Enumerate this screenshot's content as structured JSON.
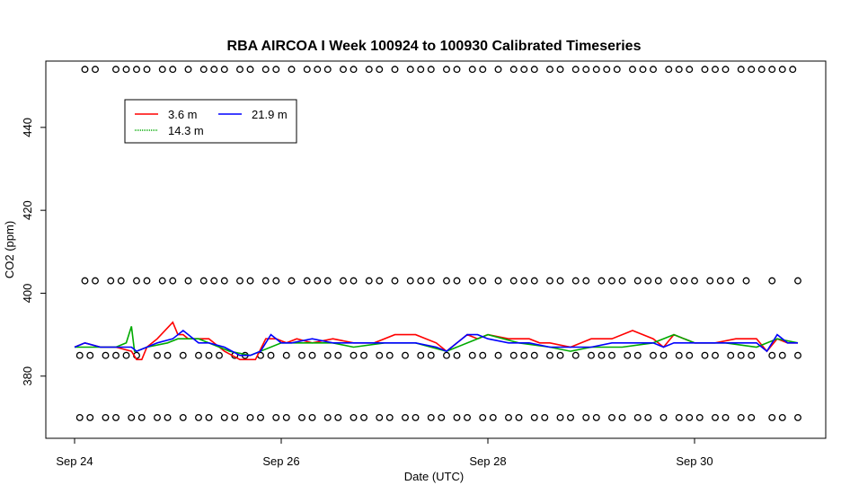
{
  "chart_data": {
    "type": "line",
    "title": "RBA AIRCOA I  Week 100924 to 100930  Calibrated Timeseries",
    "xlabel": "Date (UTC)",
    "ylabel": "CO2 (ppm)",
    "xlim": [
      "2010-09-24T00:00",
      "2010-09-31T06:00"
    ],
    "ylim": [
      365,
      456
    ],
    "x_ticks": [
      {
        "x": "2010-09-24T00:00",
        "label": "Sep 24"
      },
      {
        "x": "2010-09-26T00:00",
        "label": "Sep 26"
      },
      {
        "x": "2010-09-28T00:00",
        "label": "Sep 28"
      },
      {
        "x": "2010-09-30T00:00",
        "label": "Sep 30"
      }
    ],
    "y_ticks": [
      380,
      400,
      420,
      440
    ],
    "grid": false,
    "legend": {
      "placement": "top-left",
      "entries": [
        {
          "name": "3.6 m",
          "color": "#ff0000"
        },
        {
          "name": "14.3 m",
          "color": "#00aa00"
        },
        {
          "name": "21.9 m",
          "color": "#0000ff"
        }
      ]
    },
    "series": [
      {
        "name": "3.6 m",
        "color": "#ff0000",
        "x_days": [
          0,
          0.1,
          0.25,
          0.4,
          0.55,
          0.6,
          0.65,
          0.7,
          0.8,
          0.95,
          1.0,
          1.05,
          1.1,
          1.2,
          1.3,
          1.45,
          1.6,
          1.7,
          1.75,
          1.85,
          1.95,
          2.05,
          2.15,
          2.3,
          2.5,
          2.7,
          2.9,
          3.1,
          3.3,
          3.5,
          3.6,
          3.8,
          3.9,
          4.0,
          4.2,
          4.4,
          4.5,
          4.6,
          4.8,
          5.0,
          5.2,
          5.4,
          5.6,
          5.7,
          5.8,
          5.9,
          6.0,
          6.2,
          6.4,
          6.6,
          6.7,
          6.8,
          6.9,
          7.0
        ],
        "values": [
          387,
          388,
          387,
          387,
          386,
          384,
          384,
          387,
          389,
          393,
          390,
          390,
          389,
          389,
          389,
          386,
          384,
          384,
          384,
          389,
          389,
          388,
          389,
          388,
          389,
          388,
          388,
          390,
          390,
          388,
          386,
          390,
          389,
          390,
          389,
          389,
          388,
          388,
          387,
          389,
          389,
          391,
          389,
          387,
          390,
          389,
          388,
          388,
          389,
          389,
          386,
          389,
          388,
          388
        ]
      },
      {
        "name": "14.3 m",
        "color": "#00aa00",
        "x_days": [
          0,
          0.2,
          0.4,
          0.5,
          0.55,
          0.58,
          0.6,
          0.7,
          0.9,
          1.0,
          1.2,
          1.5,
          1.7,
          2.0,
          2.3,
          2.5,
          2.7,
          3.0,
          3.3,
          3.6,
          4.0,
          4.3,
          4.6,
          4.8,
          5.0,
          5.3,
          5.6,
          5.8,
          6.0,
          6.3,
          6.6,
          6.8,
          7.0
        ],
        "values": [
          387,
          387,
          387,
          388,
          392,
          386,
          386,
          387,
          388,
          389,
          389,
          386,
          385,
          388,
          388,
          388,
          387,
          388,
          388,
          386,
          390,
          388,
          387,
          386,
          387,
          387,
          388,
          390,
          388,
          388,
          387,
          389,
          388
        ]
      },
      {
        "name": "21.9 m",
        "color": "#0000ff",
        "x_days": [
          0,
          0.1,
          0.25,
          0.4,
          0.55,
          0.6,
          0.7,
          0.8,
          0.95,
          1.05,
          1.2,
          1.3,
          1.45,
          1.6,
          1.7,
          1.8,
          1.9,
          2.0,
          2.1,
          2.3,
          2.5,
          2.7,
          2.9,
          3.1,
          3.3,
          3.5,
          3.6,
          3.8,
          3.9,
          4.0,
          4.2,
          4.4,
          4.6,
          4.8,
          5.0,
          5.2,
          5.4,
          5.6,
          5.7,
          5.8,
          6.0,
          6.2,
          6.4,
          6.6,
          6.7,
          6.8,
          6.9,
          7.0
        ],
        "values": [
          387,
          388,
          387,
          387,
          387,
          386,
          387,
          388,
          389,
          391,
          388,
          388,
          387,
          385,
          385,
          386,
          390,
          388,
          388,
          389,
          388,
          388,
          388,
          388,
          388,
          387,
          386,
          390,
          390,
          389,
          388,
          388,
          387,
          387,
          387,
          388,
          388,
          388,
          387,
          388,
          388,
          388,
          388,
          388,
          386,
          390,
          388,
          388
        ]
      },
      {
        "name": "",
        "type": "scatter",
        "marker": "open-circle",
        "y_level": 454,
        "x_days": [
          0.1,
          0.2,
          0.4,
          0.5,
          0.6,
          0.7,
          0.85,
          0.95,
          1.1,
          1.25,
          1.35,
          1.45,
          1.6,
          1.7,
          1.85,
          1.95,
          2.1,
          2.25,
          2.35,
          2.45,
          2.6,
          2.7,
          2.85,
          2.95,
          3.1,
          3.25,
          3.35,
          3.45,
          3.6,
          3.7,
          3.85,
          3.95,
          4.1,
          4.25,
          4.35,
          4.45,
          4.6,
          4.7,
          4.85,
          4.95,
          5.05,
          5.15,
          5.25,
          5.4,
          5.5,
          5.6,
          5.75,
          5.85,
          5.95,
          6.1,
          6.2,
          6.3,
          6.45,
          6.55,
          6.65,
          6.75,
          6.85,
          6.95
        ]
      },
      {
        "name": "",
        "type": "scatter",
        "marker": "open-circle",
        "y_level": 403,
        "x_days": [
          0.1,
          0.2,
          0.35,
          0.45,
          0.6,
          0.7,
          0.85,
          0.95,
          1.1,
          1.25,
          1.35,
          1.45,
          1.6,
          1.7,
          1.85,
          1.95,
          2.1,
          2.25,
          2.35,
          2.45,
          2.6,
          2.7,
          2.85,
          2.95,
          3.1,
          3.25,
          3.35,
          3.45,
          3.6,
          3.7,
          3.85,
          3.95,
          4.1,
          4.25,
          4.35,
          4.45,
          4.6,
          4.7,
          4.85,
          4.95,
          5.1,
          5.2,
          5.3,
          5.45,
          5.55,
          5.65,
          5.8,
          5.9,
          6.0,
          6.15,
          6.25,
          6.35,
          6.5,
          6.75,
          7.0
        ]
      },
      {
        "name": "",
        "type": "scatter",
        "marker": "open-circle",
        "y_level": 385,
        "x_days": [
          0.05,
          0.15,
          0.3,
          0.4,
          0.5,
          0.6,
          0.8,
          0.9,
          1.05,
          1.2,
          1.3,
          1.4,
          1.55,
          1.65,
          1.8,
          1.9,
          2.05,
          2.2,
          2.3,
          2.45,
          2.55,
          2.7,
          2.8,
          2.95,
          3.05,
          3.2,
          3.35,
          3.45,
          3.6,
          3.7,
          3.85,
          3.95,
          4.1,
          4.25,
          4.35,
          4.45,
          4.6,
          4.7,
          4.85,
          5.0,
          5.1,
          5.2,
          5.35,
          5.45,
          5.6,
          5.7,
          5.85,
          5.95,
          6.1,
          6.2,
          6.35,
          6.45,
          6.55,
          6.75,
          6.85,
          7.0
        ]
      },
      {
        "name": "",
        "type": "scatter",
        "marker": "open-circle",
        "y_level": 370,
        "x_days": [
          0.05,
          0.15,
          0.3,
          0.4,
          0.55,
          0.65,
          0.8,
          0.9,
          1.05,
          1.2,
          1.3,
          1.45,
          1.55,
          1.7,
          1.8,
          1.95,
          2.05,
          2.2,
          2.3,
          2.45,
          2.55,
          2.7,
          2.8,
          2.95,
          3.05,
          3.2,
          3.3,
          3.45,
          3.55,
          3.7,
          3.8,
          3.95,
          4.05,
          4.2,
          4.3,
          4.45,
          4.55,
          4.7,
          4.8,
          4.95,
          5.05,
          5.2,
          5.3,
          5.45,
          5.55,
          5.7,
          5.85,
          5.95,
          6.05,
          6.2,
          6.3,
          6.45,
          6.55,
          6.75,
          6.85,
          7.0
        ]
      }
    ]
  }
}
